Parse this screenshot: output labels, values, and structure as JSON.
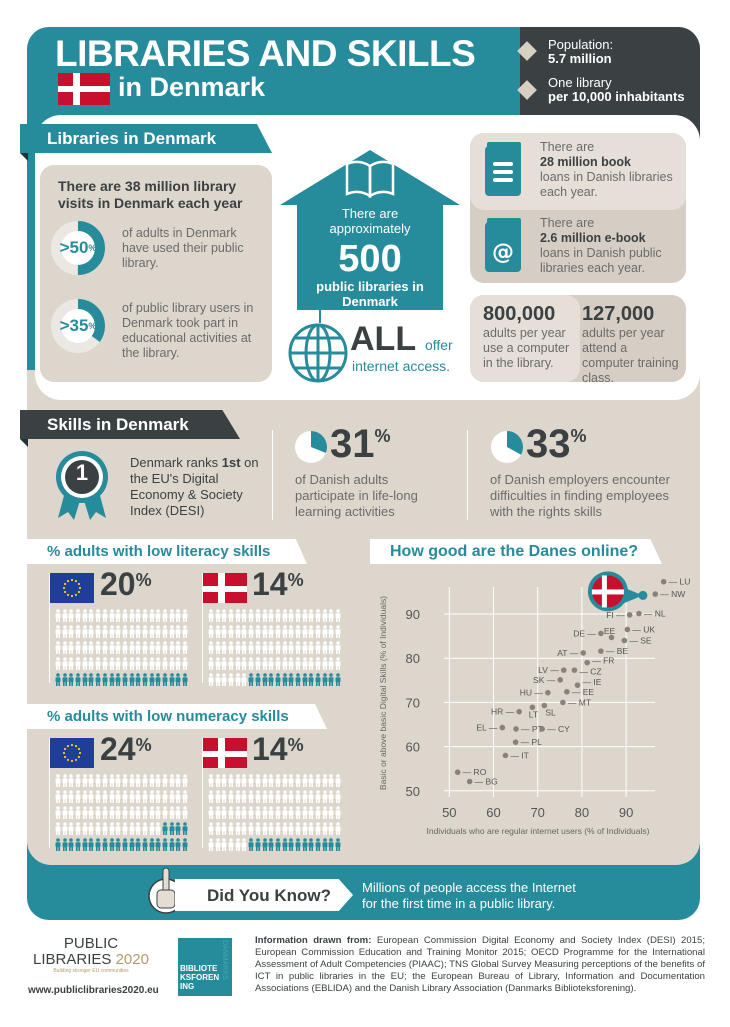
{
  "header": {
    "title": "LIBRARIES AND SKILLS",
    "subtitle": "in Denmark",
    "population_label": "Population:",
    "population_value": "5.7 million",
    "library_ratio_label": "One library",
    "library_ratio_value": "per 10,000 inhabitants"
  },
  "colors": {
    "teal": "#268b9b",
    "dark": "#3b4143",
    "beige": "#ddd6cc",
    "denmark_red": "#c8102e",
    "eu_blue": "#1f3e9a"
  },
  "libraries": {
    "section_title": "Libraries in Denmark",
    "visits": "There are 38 million library visits in Denmark each year",
    "stat1": {
      "value": ">50",
      "unit": "%",
      "fraction": 0.5,
      "text": "of adults in Denmark have used their public library."
    },
    "stat2": {
      "value": ">35",
      "unit": "%",
      "fraction": 0.35,
      "text": "of public library users in Denmark took part in educational activities at the library."
    },
    "house": {
      "line1": "There are approximately",
      "number": "500",
      "line2": "public libraries in Denmark"
    },
    "internet": {
      "big": "ALL",
      "small": "offer",
      "line2": "internet access."
    },
    "books": {
      "pre": "There are",
      "bold": "28 million book",
      "post": "loans in Danish libraries each year."
    },
    "ebooks": {
      "pre": "There are",
      "bold": "2.6 million e-book",
      "post": "loans in Danish public libraries each year."
    },
    "computer_use": {
      "number": "800,000",
      "text": "adults per year use a computer in the library."
    },
    "computer_class": {
      "number": "127,000",
      "text": "adults per year attend a computer training class."
    }
  },
  "skills": {
    "section_title": "Skills in Denmark",
    "rank_badge": "1",
    "rank_pre": "Denmark ranks ",
    "rank_bold": "1st",
    "rank_post": " on the EU's Digital Economy & Society Index (DESI)",
    "lifelong": {
      "value": "31",
      "unit": "%",
      "text": "of Danish adults participate in life-long learning activities"
    },
    "employers": {
      "value": "33",
      "unit": "%",
      "text": "of Danish employers encounter difficulties in finding employees with the rights skills"
    }
  },
  "literacy": {
    "title": "% adults with low literacy skills",
    "eu": {
      "value": 20,
      "label": "20",
      "unit": "%"
    },
    "dk": {
      "value": 14,
      "label": "14",
      "unit": "%"
    }
  },
  "numeracy": {
    "title": "% adults with low numeracy skills",
    "eu": {
      "value": 24,
      "label": "24",
      "unit": "%"
    },
    "dk": {
      "value": 14,
      "label": "14",
      "unit": "%"
    }
  },
  "chart_data": {
    "type": "scatter",
    "title": "How good are the Danes online?",
    "xlabel": "Individuals who are regular internet users (% of Individuals)",
    "ylabel": "Basic or above basic Digital Skills  (% of Individuals)",
    "xlim": [
      45,
      100
    ],
    "ylim": [
      47,
      98
    ],
    "xticks": [
      50,
      60,
      70,
      80,
      90
    ],
    "yticks": [
      50,
      60,
      70,
      80,
      90
    ],
    "grid": true,
    "points": [
      {
        "label": "LU",
        "x": 98.5,
        "y": 97.3
      },
      {
        "label": "NW",
        "x": 96.6,
        "y": 94.5
      },
      {
        "label": "",
        "x": 93.8,
        "y": 94.2,
        "highlight": "Denmark"
      },
      {
        "label": "FI",
        "x": 90.8,
        "y": 89.8
      },
      {
        "label": "NL",
        "x": 92.9,
        "y": 90.1
      },
      {
        "label": "DE",
        "x": 84.3,
        "y": 85.6
      },
      {
        "label": "EE",
        "x": 86.7,
        "y": 84.7
      },
      {
        "label": "UK",
        "x": 90.3,
        "y": 86.5
      },
      {
        "label": "SE",
        "x": 89.6,
        "y": 84.0
      },
      {
        "label": "AT",
        "x": 80.3,
        "y": 81.2
      },
      {
        "label": "BE",
        "x": 84.3,
        "y": 81.6
      },
      {
        "label": "FR",
        "x": 81.2,
        "y": 79.0
      },
      {
        "label": "LV",
        "x": 75.9,
        "y": 77.3
      },
      {
        "label": "CZ",
        "x": 78.3,
        "y": 77.3
      },
      {
        "label": "SK",
        "x": 75.1,
        "y": 75.1
      },
      {
        "label": "IE",
        "x": 79.0,
        "y": 73.9
      },
      {
        "label": "HU",
        "x": 72.3,
        "y": 72.2
      },
      {
        "label": "EE",
        "x": 76.6,
        "y": 72.4
      },
      {
        "label": "MT",
        "x": 75.7,
        "y": 70.0
      },
      {
        "label": "LT",
        "x": 68.8,
        "y": 68.9
      },
      {
        "label": "SL",
        "x": 71.5,
        "y": 69.3
      },
      {
        "label": "HR",
        "x": 65.8,
        "y": 67.9
      },
      {
        "label": "EL",
        "x": 62.0,
        "y": 64.3
      },
      {
        "label": "PT",
        "x": 65.1,
        "y": 64.0
      },
      {
        "label": "CY",
        "x": 71.0,
        "y": 64.0
      },
      {
        "label": "PL",
        "x": 65.0,
        "y": 61.0
      },
      {
        "label": "IT",
        "x": 62.7,
        "y": 58.0
      },
      {
        "label": "RO",
        "x": 51.9,
        "y": 54.2
      },
      {
        "label": "BG",
        "x": 54.6,
        "y": 52.1
      }
    ]
  },
  "did_you_know": {
    "label": "Did You Know?",
    "text_line1": "Millions of people access the Internet",
    "text_line2": "for the first time in a public library."
  },
  "footer": {
    "logo_line1": "PUBLIC",
    "logo_line2": "LIBRARIES",
    "logo_year": "2020",
    "logo_tagline": "Building stronger EU communities",
    "url": "www.publiclibraries2020.eu",
    "dbf_logo_text": "BIBLIOTEKSFORENING",
    "dbf_logo_vertical": "DANMARKS",
    "sources_bold": "Information drawn from:",
    "sources": " European Commission Digital Economy and Society Index (DESI) 2015; European Commission Education and Training Monitor 2015; OECD Programme for the International Assessment of Adult Competencies (PIAAC); TNS Global Survey Measuring perceptions of the benefits of ICT in public libraries in the EU; the European Bureau of Library, Information and Documentation Associations (EBLIDA) and the Danish Library Association (Danmarks Biblioteksforening)."
  }
}
